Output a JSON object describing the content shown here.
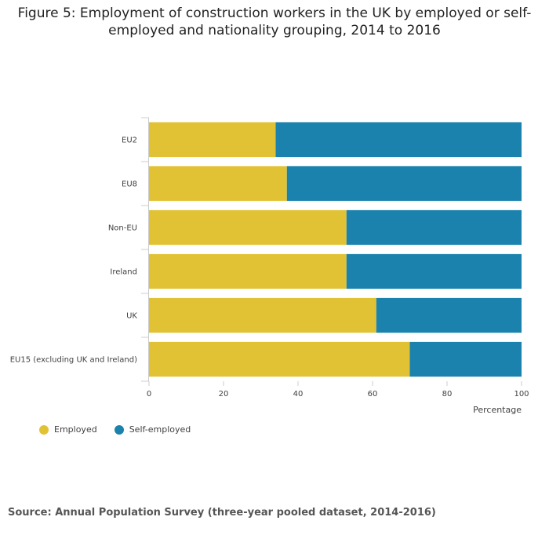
{
  "chart_data": {
    "type": "bar",
    "orientation": "horizontal",
    "stacked": true,
    "title": "Figure 5: Employment of construction workers in the UK by employed or self-employed and nationality grouping, 2014 to 2016",
    "categories": [
      "EU2",
      "EU8",
      "Non-EU",
      "Ireland",
      "UK",
      "EU15 (excluding UK and Ireland)"
    ],
    "series": [
      {
        "name": "Employed",
        "color": "#e2c235",
        "values": [
          34,
          37,
          53,
          53,
          61,
          70
        ]
      },
      {
        "name": "Self-employed",
        "color": "#1b82ad",
        "values": [
          66,
          63,
          47,
          47,
          39,
          30
        ]
      }
    ],
    "xlabel": "Percentage",
    "ylabel": "",
    "xlim": [
      0,
      100
    ],
    "xticks": [
      0,
      20,
      40,
      60,
      80,
      100
    ],
    "grid": false,
    "legend_position": "bottom-left",
    "source": "Source: Annual Population Survey (three-year pooled dataset, 2014-2016)"
  }
}
